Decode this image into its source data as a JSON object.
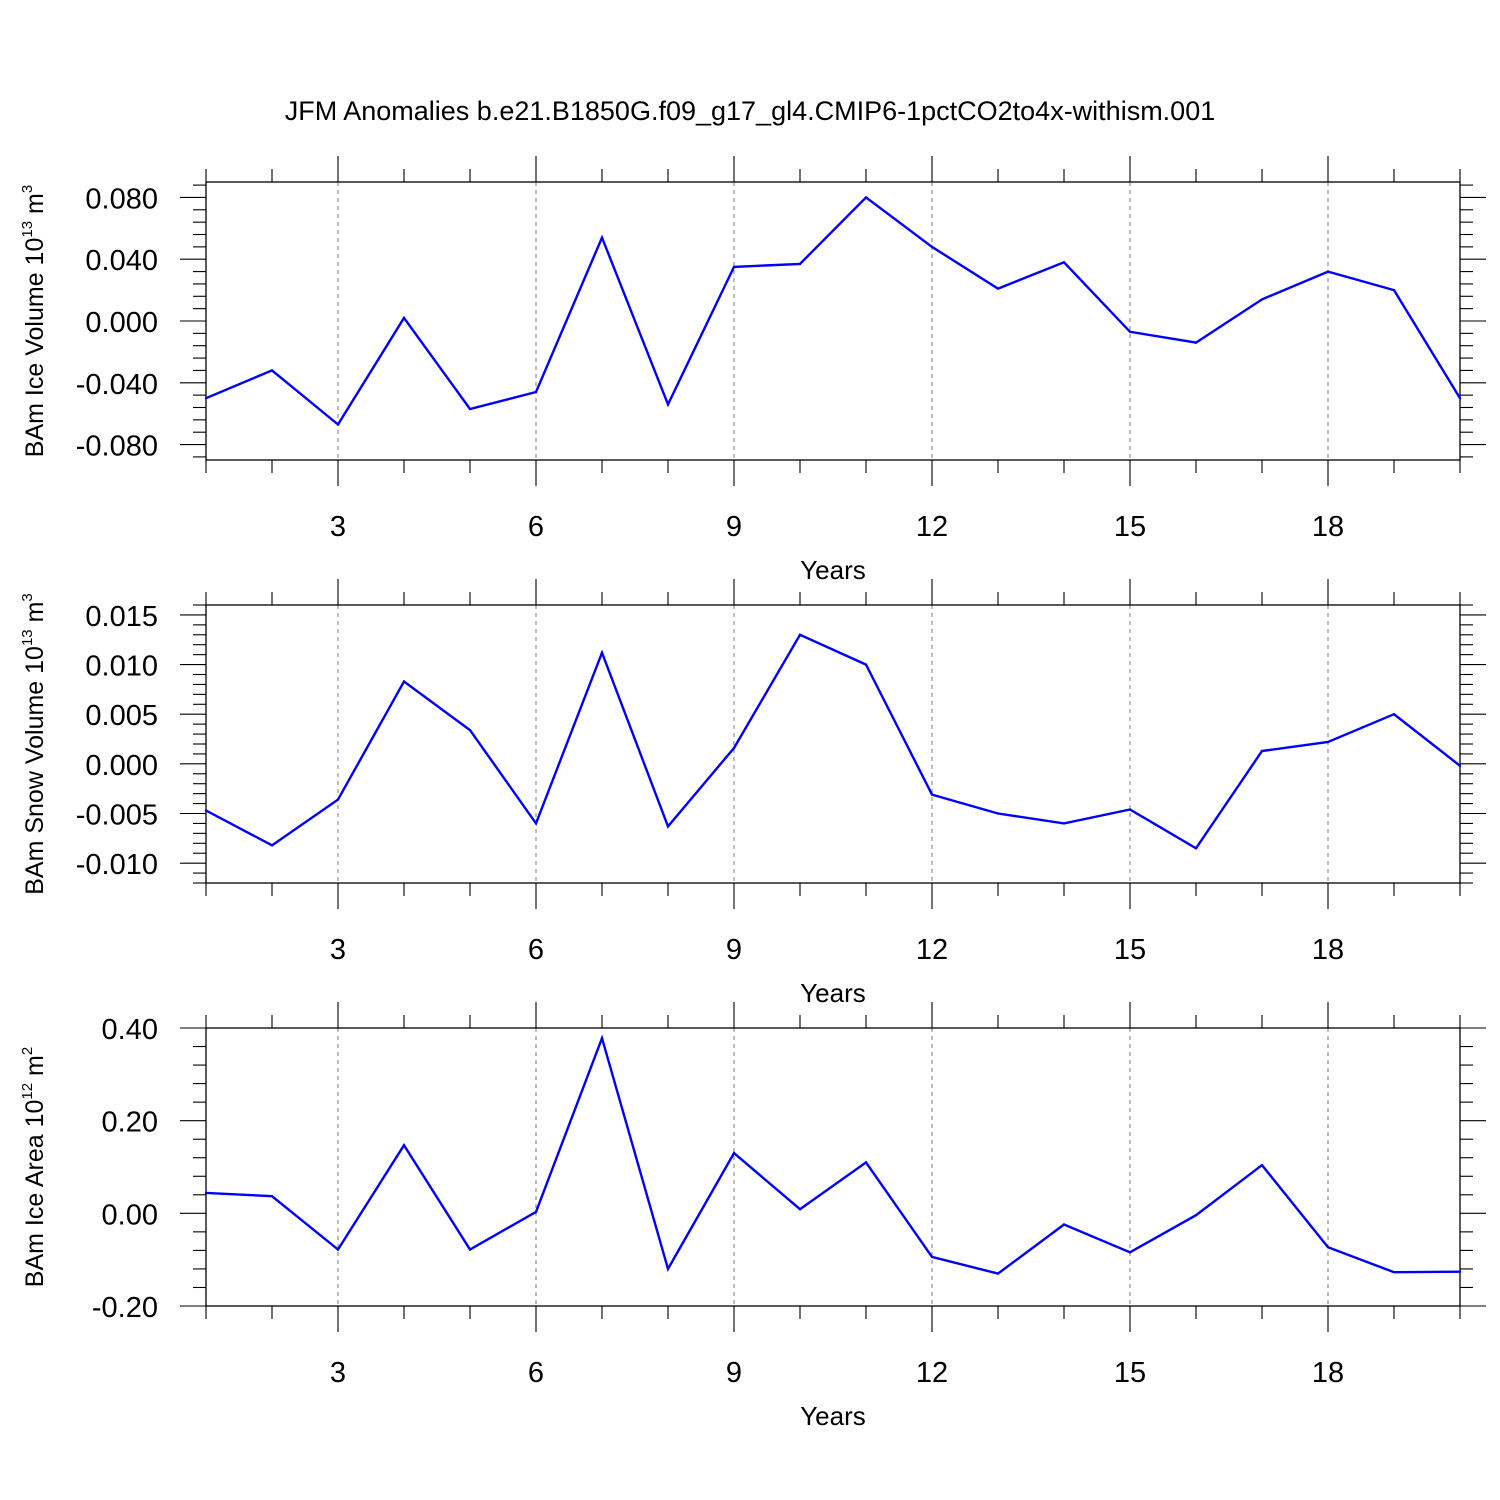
{
  "title": "JFM Anomalies b.e21.B1850G.f09_g17_gl4.CMIP6-1pctCO2to4x-withism.001",
  "colors": {
    "series": "#0000ff",
    "axis": "#000000",
    "grid": "#888888"
  },
  "chart_data": [
    {
      "type": "line",
      "ylabel": {
        "text": "BAm Ice Volume 10",
        "sup": "13",
        "unit": " m",
        "unit_sup": "3"
      },
      "xlabel": "Years",
      "xlim": [
        1,
        20
      ],
      "ylim": [
        -0.09,
        0.09
      ],
      "yticks": [
        -0.08,
        -0.04,
        0.0,
        0.04,
        0.08
      ],
      "ytick_labels": [
        "-0.080",
        "-0.040",
        "0.000",
        "0.040",
        "0.080"
      ],
      "y_minor_step": 0.008,
      "xticks": [
        3,
        6,
        9,
        12,
        15,
        18
      ],
      "xtick_labels": [
        "3",
        "6",
        "9",
        "12",
        "15",
        "18"
      ],
      "grid": "vertical dashed at major x ticks",
      "x": [
        1,
        2,
        3,
        4,
        5,
        6,
        7,
        8,
        9,
        10,
        11,
        12,
        13,
        14,
        15,
        16,
        17,
        18,
        19,
        20
      ],
      "values": [
        -0.05,
        -0.032,
        -0.067,
        0.002,
        -0.057,
        -0.046,
        0.054,
        -0.054,
        0.035,
        0.037,
        0.08,
        0.048,
        0.021,
        0.038,
        -0.007,
        -0.014,
        0.014,
        0.032,
        0.02,
        -0.05
      ]
    },
    {
      "type": "line",
      "ylabel": {
        "text": "BAm Snow Volume 10",
        "sup": "13",
        "unit": " m",
        "unit_sup": "3"
      },
      "xlabel": "Years",
      "xlim": [
        1,
        20
      ],
      "ylim": [
        -0.012,
        0.016
      ],
      "yticks": [
        -0.01,
        -0.005,
        0.0,
        0.005,
        0.01,
        0.015
      ],
      "ytick_labels": [
        "-0.010",
        "-0.005",
        "0.000",
        "0.005",
        "0.010",
        "0.015"
      ],
      "y_minor_step": 0.001,
      "xticks": [
        3,
        6,
        9,
        12,
        15,
        18
      ],
      "xtick_labels": [
        "3",
        "6",
        "9",
        "12",
        "15",
        "18"
      ],
      "grid": "vertical dashed at major x ticks",
      "x": [
        1,
        2,
        3,
        4,
        5,
        6,
        7,
        8,
        9,
        10,
        11,
        12,
        13,
        14,
        15,
        16,
        17,
        18,
        19,
        20
      ],
      "values": [
        -0.0047,
        -0.0082,
        -0.0036,
        0.0083,
        0.0034,
        -0.006,
        0.0112,
        -0.0063,
        0.0016,
        0.013,
        0.01,
        -0.0031,
        -0.005,
        -0.006,
        -0.0046,
        -0.0085,
        0.0013,
        0.0022,
        0.005,
        -0.0002
      ]
    },
    {
      "type": "line",
      "ylabel": {
        "text": "BAm Ice Area 10",
        "sup": "12",
        "unit": " m",
        "unit_sup": "2"
      },
      "xlabel": "Years",
      "xlim": [
        1,
        20
      ],
      "ylim": [
        -0.2,
        0.4
      ],
      "yticks": [
        -0.2,
        0.0,
        0.2,
        0.4
      ],
      "ytick_labels": [
        "-0.20",
        "0.00",
        "0.20",
        "0.40"
      ],
      "y_minor_step": 0.04,
      "xticks": [
        3,
        6,
        9,
        12,
        15,
        18
      ],
      "xtick_labels": [
        "3",
        "6",
        "9",
        "12",
        "15",
        "18"
      ],
      "grid": "vertical dashed at major x ticks",
      "x": [
        1,
        2,
        3,
        4,
        5,
        6,
        7,
        8,
        9,
        10,
        11,
        12,
        13,
        14,
        15,
        16,
        17,
        18,
        19,
        20
      ],
      "values": [
        0.044,
        0.037,
        -0.078,
        0.147,
        -0.078,
        0.003,
        0.378,
        -0.12,
        0.13,
        0.009,
        0.11,
        -0.094,
        -0.13,
        -0.024,
        -0.084,
        -0.004,
        0.104,
        -0.073,
        -0.127,
        -0.126
      ]
    }
  ]
}
